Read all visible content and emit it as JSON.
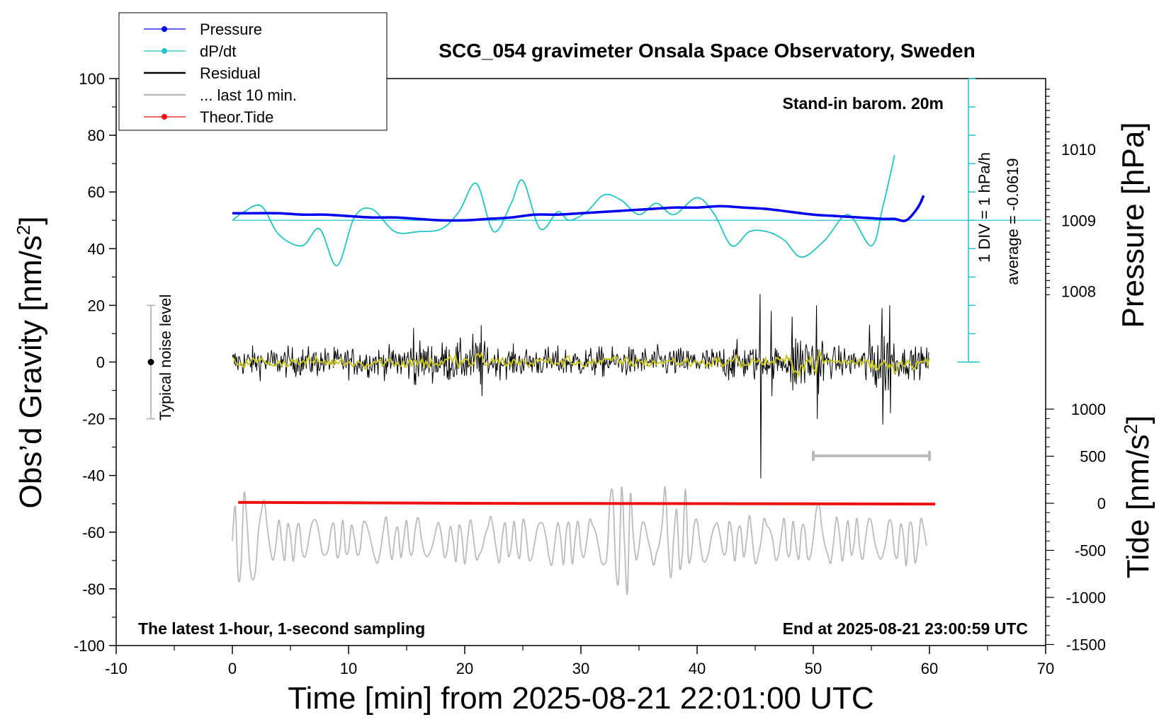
{
  "chart_data": {
    "type": "line",
    "title": "SCG_054 gravimeter Onsala Space Observatory, Sweden",
    "annotations": {
      "barometer": "Stand-in barom. 20m",
      "latest": "The latest 1-hour, 1-second sampling",
      "end": "End at 2025-08-21 23:00:59 UTC",
      "div": "1 DIV = 1 hPa/h",
      "average": "average = -0.0619",
      "noise": "Typical noise level"
    },
    "axes": {
      "x": {
        "label": "Time [min] from 2025-08-21 22:01:00 UTC",
        "range": [
          -10,
          70
        ],
        "ticks": [
          -10,
          0,
          10,
          20,
          30,
          40,
          50,
          60,
          70
        ]
      },
      "y_left": {
        "label_main": "Obs’d Gravity [nm/s",
        "label_sup": "2",
        "label_end": "]",
        "range": [
          -100,
          100
        ],
        "ticks": [
          -100,
          -80,
          -60,
          -40,
          -20,
          0,
          20,
          40,
          60,
          80,
          100
        ]
      },
      "y_right_pressure": {
        "label": "Pressure [hPa]",
        "ticks": [
          1008,
          1009,
          1010
        ]
      },
      "y_right_tide": {
        "label_main": "Tide [nm/s",
        "label_sup": "2",
        "label_end": "]",
        "range": [
          -1500,
          1000
        ],
        "ticks": [
          -1500,
          -1000,
          -500,
          0,
          500,
          1000
        ]
      }
    },
    "legend": {
      "placement": "top-left",
      "entries": [
        "Pressure",
        "dP/dt",
        "Residual",
        "... last 10 min.",
        "Theor.Tide"
      ]
    },
    "colors": {
      "pressure": "#0000ee",
      "dpdt": "#22c4c4",
      "residual": "#000000",
      "last10": "#bbbbbb",
      "tide": "#ee1111",
      "residual_smooth": "#c8c820",
      "noise_bar": "#bbbbbb"
    },
    "series": [
      {
        "name": "Pressure",
        "unit": "hPa",
        "x": [
          0,
          2,
          4,
          6,
          8,
          10,
          12,
          14,
          16,
          18,
          20,
          22,
          24,
          26,
          28,
          30,
          32,
          34,
          36,
          38,
          40,
          42,
          44,
          46,
          48,
          50,
          52,
          54,
          56,
          57,
          58,
          59,
          59.5
        ],
        "y": [
          1009.1,
          1009.1,
          1009.1,
          1009.08,
          1009.08,
          1009.06,
          1009.04,
          1009.04,
          1009.02,
          1009.0,
          1009.0,
          1009.02,
          1009.04,
          1009.08,
          1009.08,
          1009.1,
          1009.12,
          1009.14,
          1009.16,
          1009.18,
          1009.18,
          1009.2,
          1009.18,
          1009.16,
          1009.12,
          1009.08,
          1009.06,
          1009.04,
          1009.02,
          1009.02,
          1009.0,
          1009.18,
          1009.35
        ]
      },
      {
        "name": "dP/dt",
        "unit": "hPa/h",
        "x": [
          0,
          1,
          2.5,
          4,
          6,
          7.5,
          9,
          10.5,
          12,
          14,
          16,
          18,
          19.5,
          21,
          22.5,
          24,
          25,
          26.5,
          28,
          29,
          30.5,
          32,
          33.5,
          35,
          36.5,
          38,
          40,
          41.5,
          43,
          44.5,
          46,
          47.5,
          49,
          51,
          53,
          55,
          56,
          57
        ],
        "y": [
          0,
          0.3,
          0.5,
          -0.5,
          -0.9,
          -0.3,
          -1.6,
          0.1,
          0.4,
          -0.4,
          -0.4,
          -0.3,
          0.3,
          1.3,
          -0.4,
          0.6,
          1.4,
          -0.3,
          0.3,
          0.0,
          0.3,
          0.9,
          0.7,
          0.2,
          0.6,
          0.2,
          0.8,
          0.2,
          -0.9,
          -0.4,
          -0.4,
          -0.7,
          -1.3,
          -0.7,
          0.2,
          -0.9,
          0.5,
          2.3
        ]
      },
      {
        "name": "Theor.Tide",
        "unit": "nm/s2",
        "x": [
          0.5,
          10,
          20,
          30,
          40,
          50,
          60.5
        ],
        "y": [
          10,
          5,
          0,
          -2,
          -4,
          -6,
          -8
        ]
      }
    ],
    "reference_lines": {
      "pressure_average_hpa": 1009.0,
      "dpdt_scale_div": 1
    }
  }
}
